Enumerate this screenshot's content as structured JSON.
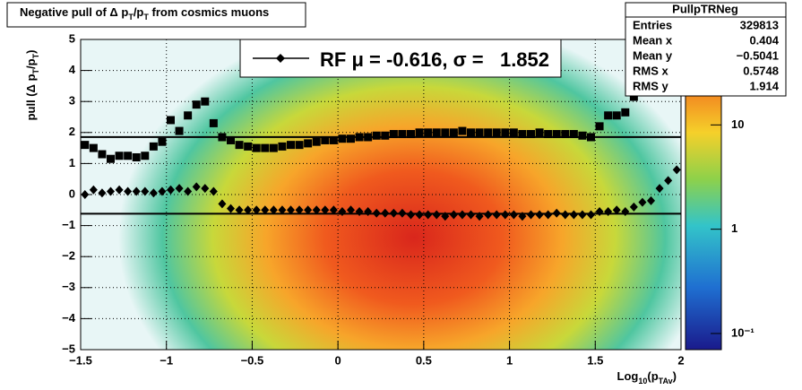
{
  "chart_data": {
    "type": "profile",
    "title_parts": [
      "Negative pull of Δ p",
      "T",
      "/p",
      "T",
      " from cosmics muons"
    ],
    "ylabel_parts": [
      "pull (Δ p",
      "T",
      "/p",
      "T",
      ")"
    ],
    "xlabel_parts": [
      "Log",
      "10",
      "(p",
      "TAv",
      ")"
    ],
    "xlim": [
      -1.5,
      2
    ],
    "ylim": [
      -5,
      5
    ],
    "xticks": [
      {
        "value": -1.5,
        "label": "−1.5"
      },
      {
        "value": -1,
        "label": "−1"
      },
      {
        "value": -0.5,
        "label": "−0.5"
      },
      0,
      0.5,
      1,
      1.5,
      2
    ],
    "yticks": [
      {
        "value": -5,
        "label": "−5"
      },
      {
        "value": -4,
        "label": "−4"
      },
      {
        "value": -3,
        "label": "−3"
      },
      {
        "value": -2,
        "label": "−2"
      },
      {
        "value": -1,
        "label": "−1"
      },
      0,
      1,
      2,
      3,
      4,
      5
    ],
    "grid": true,
    "zlim": [
      0.07,
      66
    ],
    "zticks": [
      {
        "value": 0.1,
        "label": "10⁻¹"
      },
      1,
      10
    ],
    "zscale": "log",
    "x": [
      -1.475,
      -1.425,
      -1.375,
      -1.325,
      -1.275,
      -1.225,
      -1.175,
      -1.125,
      -1.075,
      -1.025,
      -0.975,
      -0.925,
      -0.875,
      -0.825,
      -0.775,
      -0.725,
      -0.675,
      -0.625,
      -0.575,
      -0.525,
      -0.475,
      -0.425,
      -0.375,
      -0.325,
      -0.275,
      -0.225,
      -0.175,
      -0.125,
      -0.075,
      -0.025,
      0.025,
      0.075,
      0.125,
      0.175,
      0.225,
      0.275,
      0.325,
      0.375,
      0.425,
      0.475,
      0.525,
      0.575,
      0.625,
      0.675,
      0.725,
      0.775,
      0.825,
      0.875,
      0.925,
      0.975,
      1.025,
      1.075,
      1.125,
      1.175,
      1.225,
      1.275,
      1.325,
      1.375,
      1.425,
      1.475,
      1.525,
      1.575,
      1.625,
      1.675,
      1.725,
      1.775,
      1.825,
      1.875,
      1.925,
      1.975
    ],
    "series": [
      {
        "marker": "diamond",
        "color": "#000000",
        "values": [
          0,
          0.15,
          0.05,
          0.1,
          0.15,
          0.1,
          0.1,
          0.1,
          0.05,
          0.1,
          0.15,
          0.2,
          0.1,
          0.25,
          0.2,
          0.1,
          -0.3,
          -0.45,
          -0.5,
          -0.5,
          -0.5,
          -0.5,
          -0.5,
          -0.5,
          -0.5,
          -0.5,
          -0.5,
          -0.5,
          -0.5,
          -0.5,
          -0.55,
          -0.5,
          -0.55,
          -0.55,
          -0.6,
          -0.6,
          -0.6,
          -0.6,
          -0.65,
          -0.65,
          -0.65,
          -0.65,
          -0.7,
          -0.65,
          -0.65,
          -0.65,
          -0.7,
          -0.65,
          -0.65,
          -0.65,
          -0.65,
          -0.7,
          -0.65,
          -0.65,
          -0.65,
          -0.6,
          -0.65,
          -0.65,
          -0.65,
          -0.65,
          -0.55,
          -0.55,
          -0.5,
          -0.55,
          -0.4,
          -0.25,
          -0.2,
          0.2,
          0.45,
          0.8
        ]
      },
      {
        "marker": "square",
        "color": "#000000",
        "values": [
          1.6,
          1.5,
          1.3,
          1.15,
          1.25,
          1.25,
          1.2,
          1.25,
          1.55,
          1.7,
          2.4,
          2.05,
          2.55,
          2.9,
          3.0,
          2.3,
          1.85,
          1.75,
          1.6,
          1.55,
          1.5,
          1.5,
          1.5,
          1.55,
          1.6,
          1.6,
          1.65,
          1.7,
          1.75,
          1.75,
          1.8,
          1.8,
          1.85,
          1.85,
          1.9,
          1.9,
          1.95,
          1.95,
          1.95,
          2.0,
          2.0,
          2.0,
          2.0,
          2.0,
          2.05,
          2.0,
          2.0,
          2.0,
          2.0,
          2.0,
          2.0,
          1.95,
          1.95,
          2.0,
          1.95,
          1.95,
          1.95,
          1.95,
          1.9,
          1.85,
          2.2,
          2.55,
          2.55,
          2.65,
          3.15,
          3.3,
          3.5,
          3.8,
          4.1,
          4.4
        ]
      }
    ],
    "fit": {
      "mu": -0.616,
      "sigma": 1.852
    },
    "legend_parts": [
      "RF μ = ",
      ", σ =   "
    ],
    "stats": {
      "title": "PullpTRNeg",
      "rows": [
        {
          "label": "Entries",
          "value": 329813
        },
        {
          "label": "Mean x",
          "value": 0.404
        },
        {
          "label": "Mean y",
          "value": "−0.5041"
        },
        {
          "label": "RMS x",
          "value": 0.5748
        },
        {
          "label": "RMS y",
          "value": 1.914
        }
      ]
    }
  }
}
